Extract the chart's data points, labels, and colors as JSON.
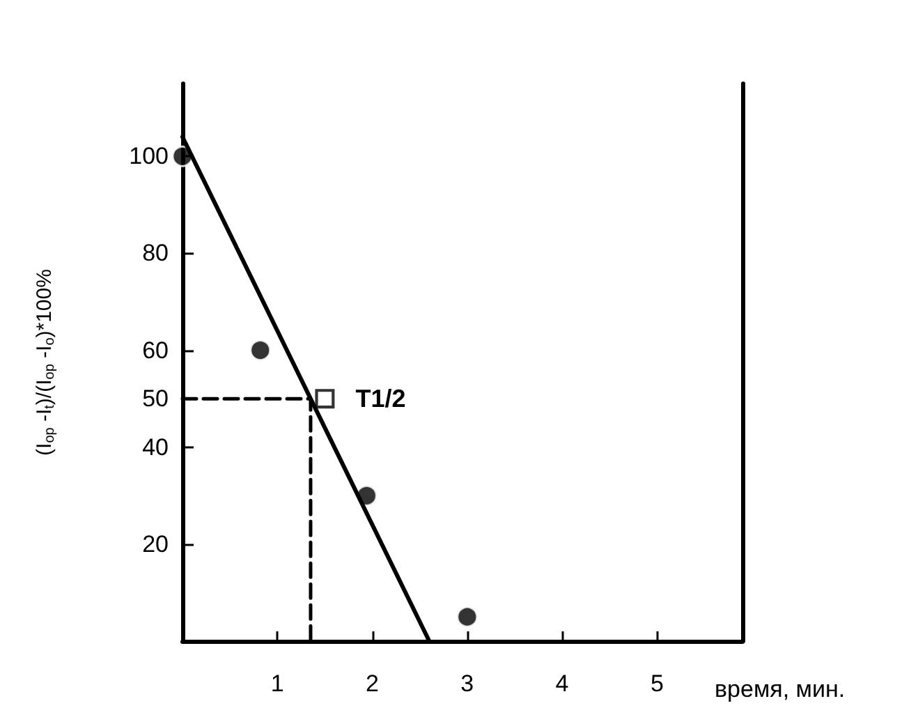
{
  "chart_data": {
    "type": "scatter",
    "xlabel": "время, мин.",
    "ylabel": "(I$_{op}$ -I$_{t}$)/(I$_{op}$ -I$_{o}$)*100%",
    "xlim": [
      0,
      5.9
    ],
    "xticks": [
      1,
      2,
      3,
      4,
      5
    ],
    "ylim": [
      0,
      115
    ],
    "yticks": [
      20,
      40,
      50,
      60,
      80,
      100
    ],
    "grid": false,
    "series": [
      {
        "marker": "circle",
        "color": "#000000",
        "x": [
          0,
          0.82,
          1.94,
          3
        ],
        "values": [
          100,
          60,
          30,
          5
        ]
      },
      {
        "type": "line",
        "marker": "none",
        "line_style": "solid",
        "color": "#000000",
        "x": [
          0,
          2.6
        ],
        "values": [
          104,
          0
        ]
      },
      {
        "type": "line",
        "marker": "none",
        "line_style": "dashed",
        "color": "#000000",
        "x": [
          0,
          1.35,
          1.35
        ],
        "values": [
          50,
          50,
          0
        ]
      },
      {
        "marker": "square",
        "color": "#000000",
        "x": [
          1.5
        ],
        "values": [
          50
        ]
      }
    ],
    "annotations": [
      {
        "text": "T1/2",
        "x": 1.5,
        "y": 50
      }
    ]
  }
}
